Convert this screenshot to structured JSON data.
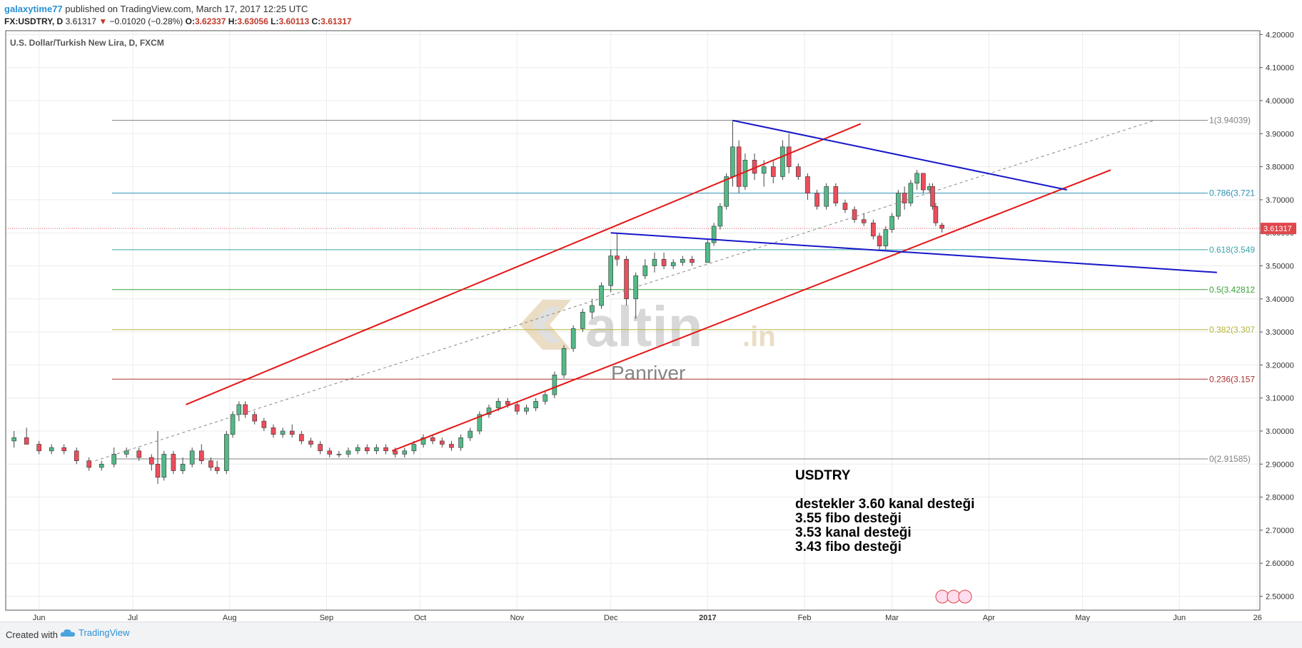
{
  "header": {
    "user": "galaxytime77",
    "published_text": "published on TradingView.com, March 17, 2017 12:25 UTC",
    "symbol": "FX:USDTRY, D",
    "last": "3.61317",
    "arrow": "▼",
    "change": "−0.01020 (−0.28%)",
    "o_label": "O:",
    "o": "3.62337",
    "h_label": "H:",
    "h": "3.63056",
    "l_label": "L:",
    "l": "3.60113",
    "c_label": "C:",
    "c": "3.61317"
  },
  "footer": {
    "created_with": "Created with",
    "brand": "TradingView",
    "brand_icon": "tradingview-cloud-icon"
  },
  "watermark": {
    "logo_text": "altin",
    "logo_suffix": ".in",
    "sub": "Panriver"
  },
  "note": {
    "title": "USDTRY",
    "lines": [
      "destekler  3.60 kanal desteği",
      "3.55  fibo desteği",
      "3.53 kanal desteği",
      "3.43  fibo desteği"
    ]
  },
  "colors": {
    "up": "#53b987",
    "down": "#eb4d5c",
    "channel": "#e51616",
    "triangle": "#1717c9",
    "fib0": "#808080",
    "fib236": "#a83232",
    "fib382": "#b3b33a",
    "fib5": "#3aa03a",
    "fib618": "#3aa3a3",
    "fib786": "#2d8fb3",
    "fib1": "#808080"
  },
  "chart_data": {
    "type": "candlestick",
    "title": "U.S. Dollar/Turkish New Lira, D, FXCM",
    "x_ticks": [
      "Jun",
      "Jul",
      "Aug",
      "Sep",
      "Oct",
      "Nov",
      "Dec",
      "2017",
      "Feb",
      "Mar",
      "Apr",
      "May",
      "Jun",
      "26"
    ],
    "y_ticks": [
      "4.20000",
      "4.10000",
      "4.00000",
      "3.90000",
      "3.80000",
      "3.70000",
      "3.60000",
      "3.50000",
      "3.40000",
      "3.30000",
      "3.20000",
      "3.10000",
      "3.00000",
      "2.90000",
      "2.80000",
      "2.70000",
      "2.60000",
      "2.50000"
    ],
    "ylim": [
      2.47,
      4.21
    ],
    "last_price_label": "3.61317",
    "last_price": 3.61317,
    "fib_levels": [
      {
        "ratio": 1,
        "price": 3.94039,
        "label": "1(3.94039)"
      },
      {
        "ratio": 0.786,
        "price": 3.72,
        "label": "0.786(3.721"
      },
      {
        "ratio": 0.618,
        "price": 3.549,
        "label": "0.618(3.549"
      },
      {
        "ratio": 0.5,
        "price": 3.42812,
        "label": "0.5(3.42812"
      },
      {
        "ratio": 0.382,
        "price": 3.307,
        "label": "0.382(3.307"
      },
      {
        "ratio": 0.236,
        "price": 3.157,
        "label": "0.236(3.157"
      },
      {
        "ratio": 0,
        "price": 2.91585,
        "label": "0(2.91585)"
      }
    ],
    "channel_upper": [
      {
        "date": "2016-07-18",
        "price": 3.08
      },
      {
        "date": "2017-02-19",
        "price": 3.93
      }
    ],
    "channel_lower": [
      {
        "date": "2016-09-22",
        "price": 2.94
      },
      {
        "date": "2017-05-10",
        "price": 3.79
      }
    ],
    "channel_mid": [
      {
        "date": "2016-06-19",
        "price": 2.91
      },
      {
        "date": "2017-05-24",
        "price": 3.94
      }
    ],
    "triangle_upper": [
      {
        "date": "2017-01-09",
        "price": 3.94
      },
      {
        "date": "2017-04-26",
        "price": 3.73
      }
    ],
    "triangle_lower": [
      {
        "date": "2016-12-01",
        "price": 3.6
      },
      {
        "date": "2017-06-13",
        "price": 3.48
      }
    ],
    "candles": [
      {
        "date": "2016-05-24",
        "o": 2.97,
        "h": 3.0,
        "l": 2.95,
        "c": 2.98
      },
      {
        "date": "2016-05-28",
        "o": 2.98,
        "h": 3.01,
        "l": 2.96,
        "c": 2.96
      },
      {
        "date": "2016-06-01",
        "o": 2.96,
        "h": 2.97,
        "l": 2.93,
        "c": 2.94
      },
      {
        "date": "2016-06-05",
        "o": 2.94,
        "h": 2.96,
        "l": 2.93,
        "c": 2.95
      },
      {
        "date": "2016-06-09",
        "o": 2.95,
        "h": 2.96,
        "l": 2.93,
        "c": 2.94
      },
      {
        "date": "2016-06-13",
        "o": 2.94,
        "h": 2.95,
        "l": 2.9,
        "c": 2.91
      },
      {
        "date": "2016-06-17",
        "o": 2.91,
        "h": 2.92,
        "l": 2.88,
        "c": 2.89
      },
      {
        "date": "2016-06-21",
        "o": 2.89,
        "h": 2.91,
        "l": 2.88,
        "c": 2.9
      },
      {
        "date": "2016-06-25",
        "o": 2.9,
        "h": 2.95,
        "l": 2.89,
        "c": 2.93
      },
      {
        "date": "2016-06-29",
        "o": 2.93,
        "h": 2.95,
        "l": 2.92,
        "c": 2.94
      },
      {
        "date": "2016-07-03",
        "o": 2.94,
        "h": 2.95,
        "l": 2.91,
        "c": 2.92
      },
      {
        "date": "2016-07-07",
        "o": 2.92,
        "h": 2.93,
        "l": 2.88,
        "c": 2.9
      },
      {
        "date": "2016-07-09",
        "o": 2.9,
        "h": 3.0,
        "l": 2.84,
        "c": 2.86
      },
      {
        "date": "2016-07-11",
        "o": 2.86,
        "h": 2.94,
        "l": 2.85,
        "c": 2.93
      },
      {
        "date": "2016-07-14",
        "o": 2.93,
        "h": 2.94,
        "l": 2.87,
        "c": 2.88
      },
      {
        "date": "2016-07-17",
        "o": 2.88,
        "h": 2.92,
        "l": 2.87,
        "c": 2.9
      },
      {
        "date": "2016-07-20",
        "o": 2.9,
        "h": 2.95,
        "l": 2.89,
        "c": 2.94
      },
      {
        "date": "2016-07-23",
        "o": 2.94,
        "h": 2.96,
        "l": 2.9,
        "c": 2.91
      },
      {
        "date": "2016-07-26",
        "o": 2.91,
        "h": 2.92,
        "l": 2.88,
        "c": 2.89
      },
      {
        "date": "2016-07-28",
        "o": 2.89,
        "h": 2.91,
        "l": 2.87,
        "c": 2.88
      },
      {
        "date": "2016-07-31",
        "o": 2.88,
        "h": 3.0,
        "l": 2.87,
        "c": 2.99
      },
      {
        "date": "2016-08-02",
        "o": 2.99,
        "h": 3.06,
        "l": 2.98,
        "c": 3.05
      },
      {
        "date": "2016-08-04",
        "o": 3.05,
        "h": 3.09,
        "l": 3.03,
        "c": 3.08
      },
      {
        "date": "2016-08-06",
        "o": 3.08,
        "h": 3.09,
        "l": 3.04,
        "c": 3.05
      },
      {
        "date": "2016-08-09",
        "o": 3.05,
        "h": 3.06,
        "l": 3.02,
        "c": 3.03
      },
      {
        "date": "2016-08-12",
        "o": 3.03,
        "h": 3.04,
        "l": 3.0,
        "c": 3.01
      },
      {
        "date": "2016-08-15",
        "o": 3.01,
        "h": 3.02,
        "l": 2.98,
        "c": 2.99
      },
      {
        "date": "2016-08-18",
        "o": 2.99,
        "h": 3.01,
        "l": 2.98,
        "c": 3.0
      },
      {
        "date": "2016-08-21",
        "o": 3.0,
        "h": 3.02,
        "l": 2.98,
        "c": 2.99
      },
      {
        "date": "2016-08-24",
        "o": 2.99,
        "h": 3.0,
        "l": 2.96,
        "c": 2.97
      },
      {
        "date": "2016-08-27",
        "o": 2.97,
        "h": 2.98,
        "l": 2.95,
        "c": 2.96
      },
      {
        "date": "2016-08-30",
        "o": 2.96,
        "h": 2.97,
        "l": 2.93,
        "c": 2.94
      },
      {
        "date": "2016-09-02",
        "o": 2.94,
        "h": 2.95,
        "l": 2.92,
        "c": 2.93
      },
      {
        "date": "2016-09-05",
        "o": 2.93,
        "h": 2.94,
        "l": 2.92,
        "c": 2.93
      },
      {
        "date": "2016-09-08",
        "o": 2.93,
        "h": 2.95,
        "l": 2.92,
        "c": 2.94
      },
      {
        "date": "2016-09-11",
        "o": 2.94,
        "h": 2.96,
        "l": 2.93,
        "c": 2.95
      },
      {
        "date": "2016-09-14",
        "o": 2.95,
        "h": 2.96,
        "l": 2.93,
        "c": 2.94
      },
      {
        "date": "2016-09-17",
        "o": 2.94,
        "h": 2.96,
        "l": 2.93,
        "c": 2.95
      },
      {
        "date": "2016-09-20",
        "o": 2.95,
        "h": 2.96,
        "l": 2.93,
        "c": 2.94
      },
      {
        "date": "2016-09-23",
        "o": 2.94,
        "h": 2.95,
        "l": 2.92,
        "c": 2.93
      },
      {
        "date": "2016-09-26",
        "o": 2.93,
        "h": 2.95,
        "l": 2.92,
        "c": 2.94
      },
      {
        "date": "2016-09-29",
        "o": 2.94,
        "h": 2.97,
        "l": 2.93,
        "c": 2.96
      },
      {
        "date": "2016-10-02",
        "o": 2.96,
        "h": 2.99,
        "l": 2.95,
        "c": 2.98
      },
      {
        "date": "2016-10-05",
        "o": 2.98,
        "h": 2.99,
        "l": 2.96,
        "c": 2.97
      },
      {
        "date": "2016-10-08",
        "o": 2.97,
        "h": 2.98,
        "l": 2.95,
        "c": 2.96
      },
      {
        "date": "2016-10-11",
        "o": 2.96,
        "h": 2.97,
        "l": 2.94,
        "c": 2.95
      },
      {
        "date": "2016-10-14",
        "o": 2.95,
        "h": 2.99,
        "l": 2.94,
        "c": 2.98
      },
      {
        "date": "2016-10-17",
        "o": 2.98,
        "h": 3.01,
        "l": 2.97,
        "c": 3.0
      },
      {
        "date": "2016-10-20",
        "o": 3.0,
        "h": 3.06,
        "l": 2.99,
        "c": 3.05
      },
      {
        "date": "2016-10-23",
        "o": 3.05,
        "h": 3.08,
        "l": 3.04,
        "c": 3.07
      },
      {
        "date": "2016-10-26",
        "o": 3.07,
        "h": 3.1,
        "l": 3.06,
        "c": 3.09
      },
      {
        "date": "2016-10-29",
        "o": 3.09,
        "h": 3.1,
        "l": 3.07,
        "c": 3.08
      },
      {
        "date": "2016-11-01",
        "o": 3.08,
        "h": 3.09,
        "l": 3.05,
        "c": 3.06
      },
      {
        "date": "2016-11-04",
        "o": 3.06,
        "h": 3.08,
        "l": 3.05,
        "c": 3.07
      },
      {
        "date": "2016-11-07",
        "o": 3.07,
        "h": 3.1,
        "l": 3.06,
        "c": 3.09
      },
      {
        "date": "2016-11-10",
        "o": 3.09,
        "h": 3.12,
        "l": 3.08,
        "c": 3.11
      },
      {
        "date": "2016-11-13",
        "o": 3.11,
        "h": 3.18,
        "l": 3.1,
        "c": 3.17
      },
      {
        "date": "2016-11-16",
        "o": 3.17,
        "h": 3.26,
        "l": 3.16,
        "c": 3.25
      },
      {
        "date": "2016-11-19",
        "o": 3.25,
        "h": 3.32,
        "l": 3.24,
        "c": 3.31
      },
      {
        "date": "2016-11-22",
        "o": 3.31,
        "h": 3.37,
        "l": 3.3,
        "c": 3.36
      },
      {
        "date": "2016-11-25",
        "o": 3.36,
        "h": 3.4,
        "l": 3.34,
        "c": 3.38
      },
      {
        "date": "2016-11-28",
        "o": 3.38,
        "h": 3.45,
        "l": 3.37,
        "c": 3.44
      },
      {
        "date": "2016-12-01",
        "o": 3.44,
        "h": 3.55,
        "l": 3.42,
        "c": 3.53
      },
      {
        "date": "2016-12-03",
        "o": 3.53,
        "h": 3.6,
        "l": 3.5,
        "c": 3.52
      },
      {
        "date": "2016-12-06",
        "o": 3.52,
        "h": 3.53,
        "l": 3.38,
        "c": 3.4
      },
      {
        "date": "2016-12-09",
        "o": 3.4,
        "h": 3.48,
        "l": 3.34,
        "c": 3.47
      },
      {
        "date": "2016-12-12",
        "o": 3.47,
        "h": 3.52,
        "l": 3.46,
        "c": 3.5
      },
      {
        "date": "2016-12-15",
        "o": 3.5,
        "h": 3.54,
        "l": 3.48,
        "c": 3.52
      },
      {
        "date": "2016-12-18",
        "o": 3.52,
        "h": 3.54,
        "l": 3.49,
        "c": 3.5
      },
      {
        "date": "2016-12-21",
        "o": 3.5,
        "h": 3.52,
        "l": 3.49,
        "c": 3.51
      },
      {
        "date": "2016-12-24",
        "o": 3.51,
        "h": 3.53,
        "l": 3.5,
        "c": 3.52
      },
      {
        "date": "2016-12-27",
        "o": 3.52,
        "h": 3.53,
        "l": 3.5,
        "c": 3.51
      },
      {
        "date": "2017-01-01",
        "o": 3.51,
        "h": 3.58,
        "l": 3.52,
        "c": 3.57
      },
      {
        "date": "2017-01-03",
        "o": 3.57,
        "h": 3.63,
        "l": 3.56,
        "c": 3.62
      },
      {
        "date": "2017-01-05",
        "o": 3.62,
        "h": 3.69,
        "l": 3.61,
        "c": 3.68
      },
      {
        "date": "2017-01-07",
        "o": 3.68,
        "h": 3.78,
        "l": 3.67,
        "c": 3.77
      },
      {
        "date": "2017-01-09",
        "o": 3.77,
        "h": 3.94,
        "l": 3.74,
        "c": 3.86
      },
      {
        "date": "2017-01-11",
        "o": 3.86,
        "h": 3.88,
        "l": 3.72,
        "c": 3.74
      },
      {
        "date": "2017-01-13",
        "o": 3.74,
        "h": 3.84,
        "l": 3.73,
        "c": 3.82
      },
      {
        "date": "2017-01-16",
        "o": 3.82,
        "h": 3.84,
        "l": 3.76,
        "c": 3.78
      },
      {
        "date": "2017-01-19",
        "o": 3.78,
        "h": 3.82,
        "l": 3.74,
        "c": 3.8
      },
      {
        "date": "2017-01-22",
        "o": 3.8,
        "h": 3.82,
        "l": 3.75,
        "c": 3.77
      },
      {
        "date": "2017-01-25",
        "o": 3.77,
        "h": 3.88,
        "l": 3.76,
        "c": 3.86
      },
      {
        "date": "2017-01-27",
        "o": 3.86,
        "h": 3.9,
        "l": 3.78,
        "c": 3.8
      },
      {
        "date": "2017-01-30",
        "o": 3.8,
        "h": 3.81,
        "l": 3.76,
        "c": 3.77
      },
      {
        "date": "2017-02-02",
        "o": 3.77,
        "h": 3.78,
        "l": 3.7,
        "c": 3.72
      },
      {
        "date": "2017-02-05",
        "o": 3.72,
        "h": 3.73,
        "l": 3.67,
        "c": 3.68
      },
      {
        "date": "2017-02-08",
        "o": 3.68,
        "h": 3.75,
        "l": 3.67,
        "c": 3.74
      },
      {
        "date": "2017-02-11",
        "o": 3.74,
        "h": 3.75,
        "l": 3.68,
        "c": 3.69
      },
      {
        "date": "2017-02-14",
        "o": 3.69,
        "h": 3.7,
        "l": 3.66,
        "c": 3.67
      },
      {
        "date": "2017-02-17",
        "o": 3.67,
        "h": 3.68,
        "l": 3.63,
        "c": 3.64
      },
      {
        "date": "2017-02-20",
        "o": 3.64,
        "h": 3.66,
        "l": 3.62,
        "c": 3.63
      },
      {
        "date": "2017-02-23",
        "o": 3.63,
        "h": 3.64,
        "l": 3.58,
        "c": 3.59
      },
      {
        "date": "2017-02-25",
        "o": 3.59,
        "h": 3.6,
        "l": 3.55,
        "c": 3.56
      },
      {
        "date": "2017-02-27",
        "o": 3.56,
        "h": 3.62,
        "l": 3.55,
        "c": 3.61
      },
      {
        "date": "2017-03-01",
        "o": 3.61,
        "h": 3.66,
        "l": 3.6,
        "c": 3.65
      },
      {
        "date": "2017-03-03",
        "o": 3.65,
        "h": 3.73,
        "l": 3.64,
        "c": 3.72
      },
      {
        "date": "2017-03-05",
        "o": 3.72,
        "h": 3.74,
        "l": 3.67,
        "c": 3.69
      },
      {
        "date": "2017-03-07",
        "o": 3.69,
        "h": 3.76,
        "l": 3.68,
        "c": 3.75
      },
      {
        "date": "2017-03-09",
        "o": 3.75,
        "h": 3.79,
        "l": 3.73,
        "c": 3.78
      },
      {
        "date": "2017-03-11",
        "o": 3.78,
        "h": 3.78,
        "l": 3.72,
        "c": 3.73
      },
      {
        "date": "2017-03-13",
        "o": 3.73,
        "h": 3.75,
        "l": 3.72,
        "c": 3.74
      },
      {
        "date": "2017-03-14",
        "o": 3.74,
        "h": 3.75,
        "l": 3.67,
        "c": 3.68
      },
      {
        "date": "2017-03-15",
        "o": 3.68,
        "h": 3.69,
        "l": 3.62,
        "c": 3.63
      },
      {
        "date": "2017-03-17",
        "o": 3.62337,
        "h": 3.63056,
        "l": 3.60113,
        "c": 3.61317
      }
    ]
  }
}
